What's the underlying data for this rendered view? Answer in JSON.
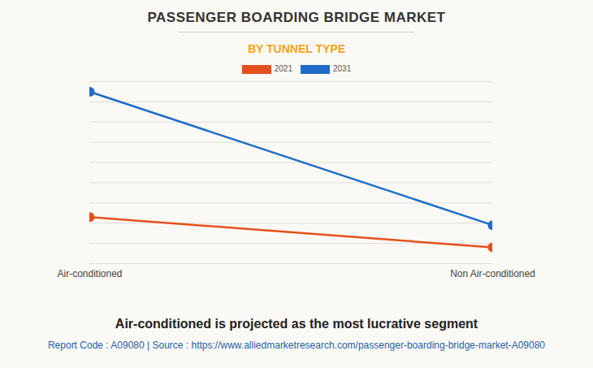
{
  "chart_data": {
    "type": "line",
    "title": "PASSENGER BOARDING BRIDGE MARKET",
    "subtitle": "BY TUNNEL TYPE",
    "categories": [
      "Air-conditioned",
      "Non Air-conditioned"
    ],
    "series": [
      {
        "name": "2021",
        "color": "#e4501d",
        "values": [
          2.3,
          0.8
        ],
        "marker": "circle"
      },
      {
        "name": "2031",
        "color": "#1f6bc9",
        "values": [
          8.5,
          1.9
        ],
        "marker": "circle"
      }
    ],
    "ylim": [
      0,
      9
    ],
    "yticks": [
      0,
      1,
      2,
      3,
      4,
      5,
      6,
      7,
      8,
      9
    ],
    "grid": true,
    "tick_labels": "x",
    "legend": "top",
    "caption": "Air-conditioned is projected as the most lucrative segment",
    "source": "Report Code : A09080  |  Source : https://www.alliedmarketresearch.com/passenger-boarding-bridge-market-A09080"
  }
}
